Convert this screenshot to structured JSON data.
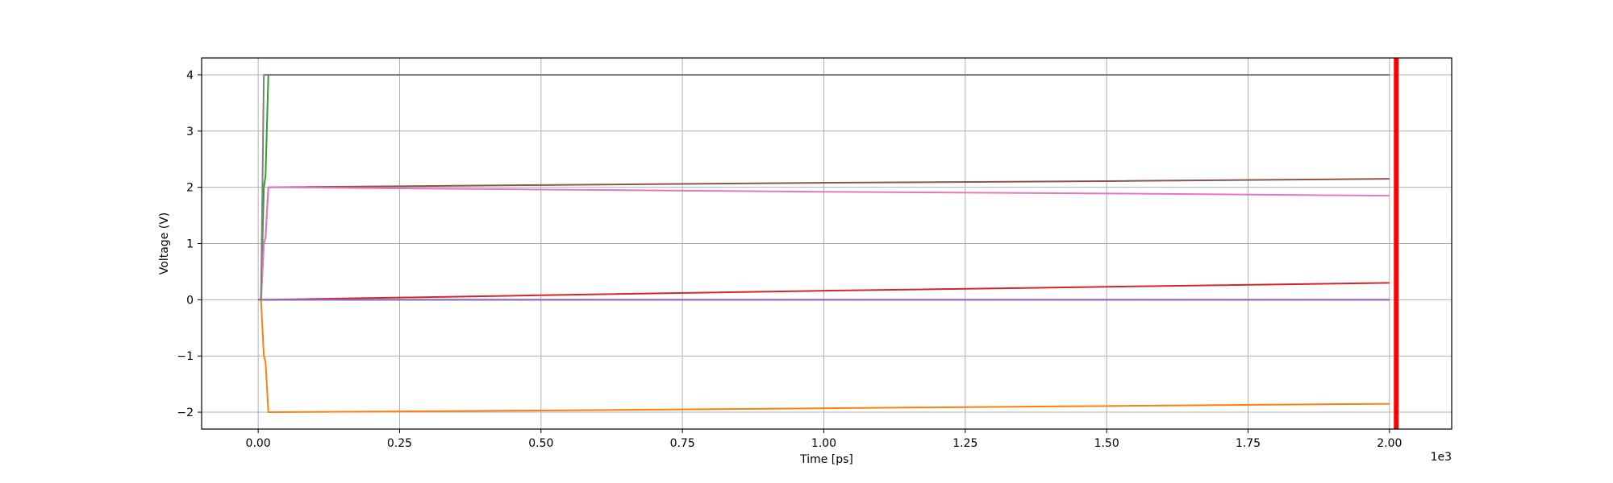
{
  "chart_data": {
    "type": "line",
    "title": "",
    "xlabel": "Time [ps]",
    "ylabel": "Voltage (V)",
    "x_scale_label": "1e3",
    "xlim": [
      -100,
      2110
    ],
    "ylim": [
      -2.3,
      4.3
    ],
    "grid": true,
    "xticks": [
      0,
      250,
      500,
      750,
      1000,
      1250,
      1500,
      1750,
      2000
    ],
    "xtick_labels": [
      "0.00",
      "0.25",
      "0.50",
      "0.75",
      "1.00",
      "1.25",
      "1.50",
      "1.75",
      "2.00"
    ],
    "yticks": [
      -2,
      -1,
      0,
      1,
      2,
      3,
      4
    ],
    "ytick_labels": [
      "−2",
      "−1",
      "0",
      "1",
      "2",
      "3",
      "4"
    ],
    "series": [
      {
        "color": "#1f77b4",
        "x": [
          0,
          5,
          10,
          2000
        ],
        "y": [
          0,
          0,
          0,
          0
        ]
      },
      {
        "color": "#ff7f0e",
        "x": [
          0,
          5,
          10,
          13,
          18,
          500,
          1000,
          1500,
          2000
        ],
        "y": [
          0,
          0,
          -1,
          -1.1,
          -2,
          -1.97,
          -1.93,
          -1.89,
          -1.85
        ]
      },
      {
        "color": "#2ca02c",
        "x": [
          0,
          5,
          10,
          13,
          18,
          2000
        ],
        "y": [
          0,
          0,
          2,
          2.2,
          4,
          4
        ]
      },
      {
        "color": "#d62728",
        "x": [
          0,
          18,
          500,
          1000,
          1500,
          2000
        ],
        "y": [
          0,
          0,
          0.08,
          0.16,
          0.23,
          0.3
        ]
      },
      {
        "color": "#9467bd",
        "x": [
          0,
          18,
          2000
        ],
        "y": [
          0,
          0,
          0
        ]
      },
      {
        "color": "#8c564b",
        "x": [
          0,
          5,
          10,
          13,
          18,
          500,
          1000,
          1500,
          2000
        ],
        "y": [
          0,
          0,
          1,
          1.1,
          2,
          2.04,
          2.08,
          2.11,
          2.15
        ]
      },
      {
        "color": "#e377c2",
        "x": [
          0,
          5,
          10,
          13,
          18,
          500,
          1000,
          1500,
          2000
        ],
        "y": [
          0,
          0,
          1,
          1.1,
          2,
          1.96,
          1.92,
          1.89,
          1.85
        ]
      },
      {
        "color": "#7f7f7f",
        "x": [
          0,
          5,
          10,
          18,
          2000
        ],
        "y": [
          0,
          0,
          4,
          4,
          4
        ]
      }
    ],
    "marker_line": {
      "x": 2012,
      "color": "#ff0000"
    }
  }
}
